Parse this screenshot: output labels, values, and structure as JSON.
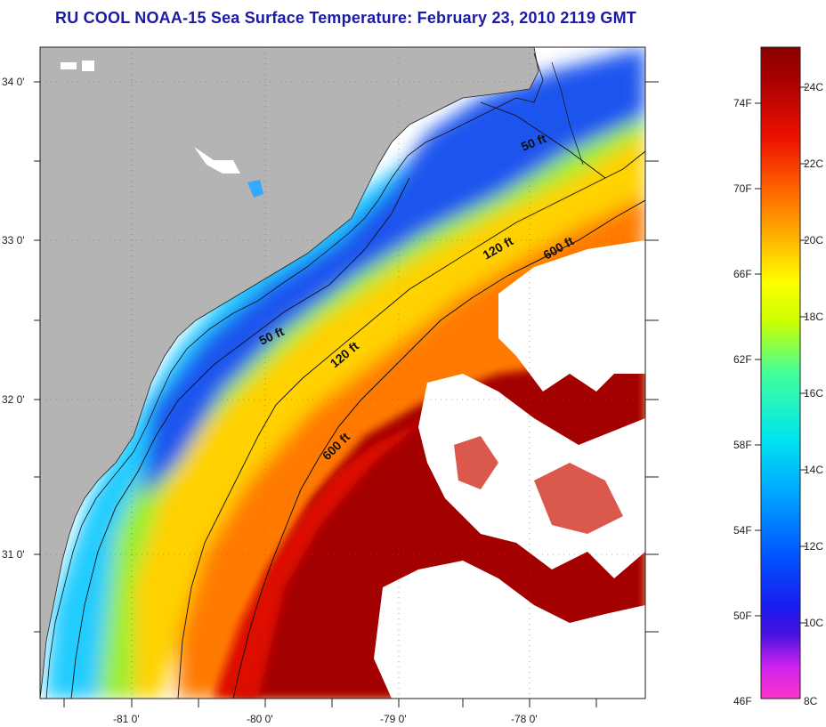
{
  "title": "RU COOL  NOAA-15  Sea Surface Temperature:  February 23, 2010 2119 GMT",
  "map": {
    "lat_labels": [
      "34 0'",
      "33 0'",
      "32 0'",
      "31 0'"
    ],
    "lon_labels": [
      "-81 0'",
      "-80 0'",
      "-79 0'",
      "-78 0'"
    ],
    "isobath_labels": [
      "50 ft",
      "50 ft",
      "120 ft",
      "120 ft",
      "600 ft",
      "600 ft"
    ]
  },
  "colorbar": {
    "fahrenheit_labels": [
      "74F",
      "70F",
      "66F",
      "62F",
      "58F",
      "54F",
      "50F",
      "46F"
    ],
    "celsius_labels": [
      "24C",
      "22C",
      "20C",
      "18C",
      "16C",
      "14C",
      "12C",
      "10C",
      "8C"
    ],
    "stops": [
      "#ff33cc",
      "#aa22ee",
      "#1a1aee",
      "#0044ff",
      "#0099ff",
      "#00ddff",
      "#44ff99",
      "#ccff00",
      "#ffff00",
      "#ffbb00",
      "#ff6600",
      "#ee1100",
      "#990000"
    ]
  },
  "colors": {
    "land": "#b4b4b4",
    "cloud": "#ffffff",
    "title": "#1a1aa6"
  }
}
